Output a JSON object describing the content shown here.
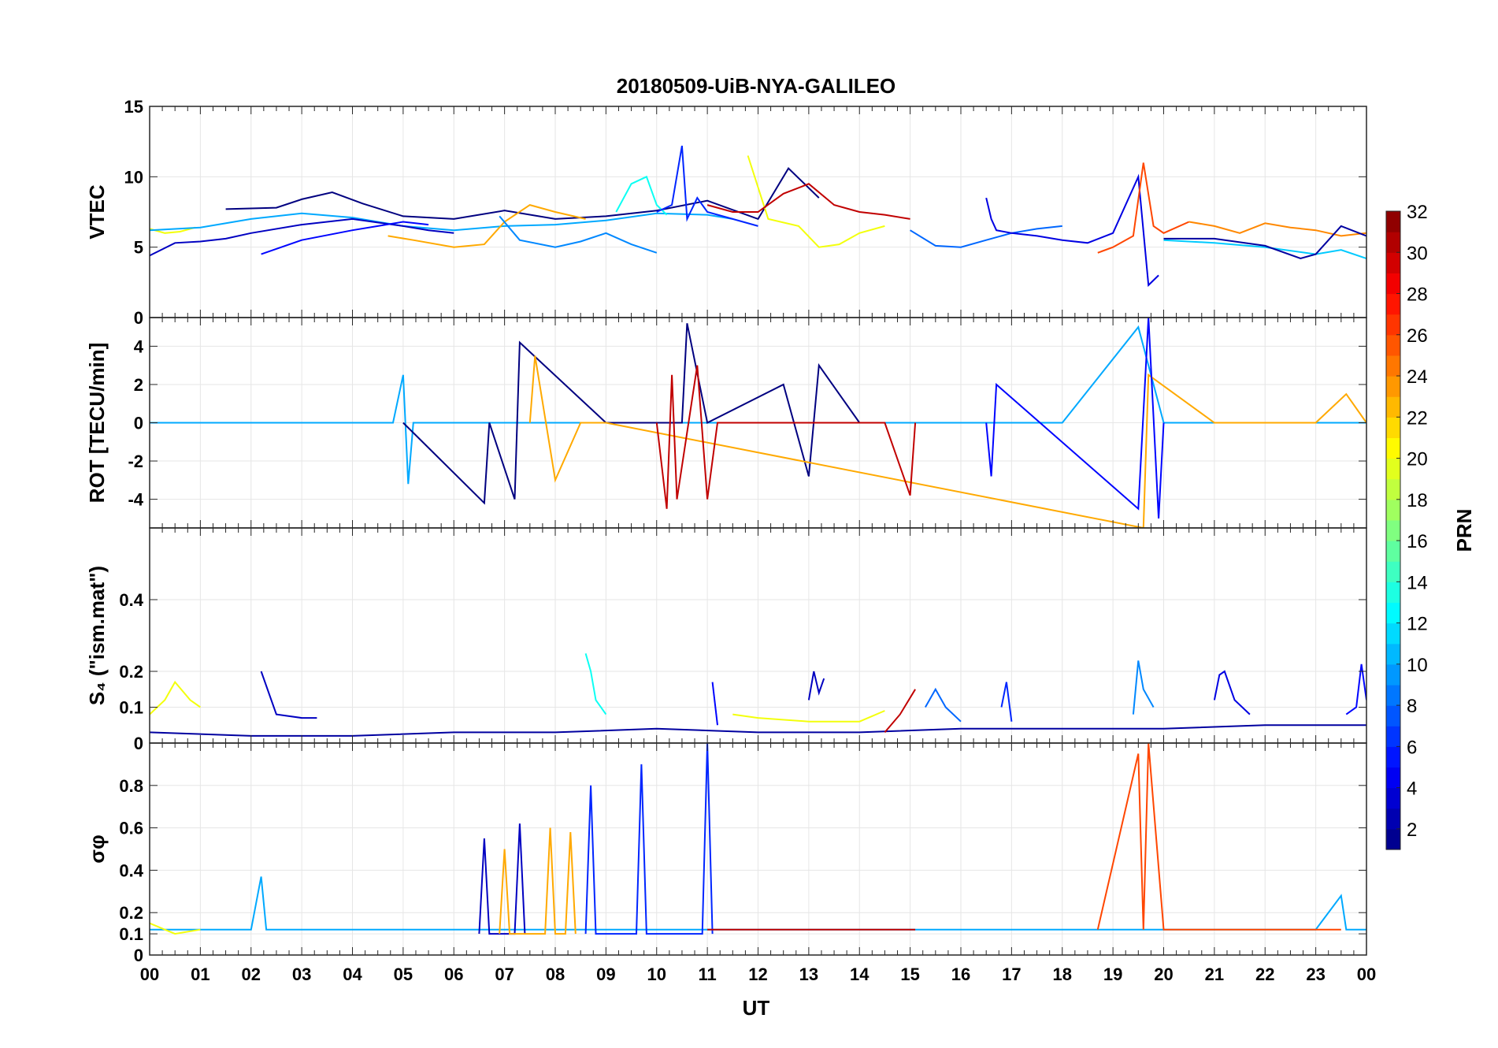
{
  "chart_data": {
    "type": "line",
    "title": "20180509-UiB-NYA-GALILEO",
    "xlabel": "UT",
    "x_ticks": [
      "00",
      "01",
      "02",
      "03",
      "04",
      "05",
      "06",
      "07",
      "08",
      "09",
      "10",
      "11",
      "12",
      "13",
      "14",
      "15",
      "16",
      "17",
      "18",
      "19",
      "20",
      "21",
      "22",
      "23",
      "00"
    ],
    "xlim": [
      0,
      24
    ],
    "colorbar": {
      "label": "PRN",
      "ticks": [
        2,
        4,
        6,
        8,
        10,
        12,
        14,
        16,
        18,
        20,
        22,
        24,
        26,
        28,
        30,
        32
      ],
      "range": [
        1,
        32
      ]
    },
    "panels": [
      {
        "id": "vtec",
        "ylabel": "VTEC",
        "ylim": [
          0,
          15
        ],
        "y_ticks": [
          0,
          5,
          10,
          15
        ],
        "series": [
          {
            "prn": 20,
            "x": [
              0.0,
              0.3,
              0.6,
              0.9
            ],
            "y": [
              6.3,
              6.0,
              6.1,
              6.4
            ]
          },
          {
            "prn": 10,
            "x": [
              0.0,
              1.0,
              2.0,
              3.0,
              4.0,
              5.0,
              6.0,
              7.0,
              8.0,
              9.0,
              10.0,
              11.0,
              11.5
            ],
            "y": [
              6.2,
              6.4,
              7.0,
              7.4,
              7.1,
              6.5,
              6.2,
              6.5,
              6.6,
              6.9,
              7.4,
              7.3,
              7.0
            ]
          },
          {
            "prn": 3,
            "x": [
              0.0,
              0.5,
              1.0,
              1.5,
              2.0,
              3.0,
              4.0,
              5.0,
              5.5,
              6.0
            ],
            "y": [
              4.4,
              5.3,
              5.4,
              5.6,
              6.0,
              6.6,
              7.0,
              6.5,
              6.2,
              6.0
            ]
          },
          {
            "prn": 1,
            "x": [
              1.5,
              2.5,
              3.0,
              3.6,
              4.2,
              5.0,
              6.0,
              7.0,
              8.0,
              9.0,
              10.0,
              11.0,
              12.0,
              12.6,
              13.2
            ],
            "y": [
              7.7,
              7.8,
              8.4,
              8.9,
              8.1,
              7.2,
              7.0,
              7.6,
              7.0,
              7.2,
              7.6,
              8.3,
              7.0,
              10.6,
              8.5
            ]
          },
          {
            "prn": 5,
            "x": [
              2.2,
              3.0,
              4.0,
              4.5,
              5.0,
              5.5
            ],
            "y": [
              4.5,
              5.5,
              6.2,
              6.5,
              6.8,
              6.6
            ]
          },
          {
            "prn": 23,
            "x": [
              4.7,
              5.2,
              6.0,
              6.6,
              7.0,
              7.5,
              8.0,
              8.6
            ],
            "y": [
              5.8,
              5.5,
              5.0,
              5.2,
              6.8,
              8.0,
              7.5,
              7.0
            ]
          },
          {
            "prn": 9,
            "x": [
              6.9,
              7.3,
              8.0,
              8.5,
              9.0,
              9.5,
              10.0
            ],
            "y": [
              7.2,
              5.5,
              5.0,
              5.4,
              6.0,
              5.2,
              4.6
            ]
          },
          {
            "prn": 13,
            "x": [
              9.2,
              9.5,
              9.8,
              10.0,
              10.2
            ],
            "y": [
              7.5,
              9.5,
              10.0,
              8.0,
              7.3
            ]
          },
          {
            "prn": 6,
            "x": [
              10.0,
              10.3,
              10.5,
              10.6,
              10.8,
              11.0,
              11.5,
              12.0
            ],
            "y": [
              7.5,
              8.0,
              12.2,
              7.0,
              8.5,
              7.5,
              7.0,
              6.5
            ]
          },
          {
            "prn": 20,
            "x": [
              11.8,
              12.2,
              12.8,
              13.2,
              13.6,
              14.0,
              14.5
            ],
            "y": [
              11.5,
              7.0,
              6.5,
              5.0,
              5.2,
              6.0,
              6.5
            ]
          },
          {
            "prn": 30,
            "x": [
              11.0,
              11.5,
              12.0,
              12.5,
              13.0,
              13.5,
              14.0,
              14.5,
              15.0
            ],
            "y": [
              8.0,
              7.5,
              7.5,
              8.8,
              9.5,
              8.0,
              7.5,
              7.3,
              7.0
            ]
          },
          {
            "prn": 8,
            "x": [
              15.0,
              15.5,
              16.0,
              16.5,
              17.0,
              17.5,
              18.0
            ],
            "y": [
              6.2,
              5.1,
              5.0,
              5.5,
              6.0,
              6.3,
              6.5
            ]
          },
          {
            "prn": 4,
            "x": [
              16.5,
              16.6,
              16.7,
              17.0,
              17.5,
              18.0,
              18.5,
              19.0,
              19.5,
              19.7,
              19.9
            ],
            "y": [
              8.5,
              7.0,
              6.2,
              6.0,
              5.8,
              5.5,
              5.3,
              6.0,
              10.0,
              2.3,
              3.0
            ]
          },
          {
            "prn": 26,
            "x": [
              18.7,
              19.0,
              19.4,
              19.6,
              19.8,
              20.0,
              20.5
            ],
            "y": [
              4.6,
              5.0,
              5.8,
              11.0,
              6.5,
              6.0,
              6.8
            ]
          },
          {
            "prn": 24,
            "x": [
              20.5,
              21.0,
              21.5,
              22.0,
              22.5,
              23.0,
              23.5,
              24.0
            ],
            "y": [
              6.8,
              6.5,
              6.0,
              6.7,
              6.4,
              6.2,
              5.8,
              6.0
            ]
          },
          {
            "prn": 11,
            "x": [
              20.0,
              21.0,
              22.0,
              23.0,
              23.5,
              24.0
            ],
            "y": [
              5.5,
              5.3,
              5.0,
              4.5,
              4.8,
              4.2
            ]
          },
          {
            "prn": 2,
            "x": [
              20.0,
              21.0,
              22.0,
              22.7,
              23.0,
              23.5,
              24.0
            ],
            "y": [
              5.6,
              5.6,
              5.1,
              4.2,
              4.5,
              6.5,
              5.8
            ]
          }
        ]
      },
      {
        "id": "rot",
        "ylabel": "ROT [TECU/min]",
        "ylim": [
          -5.5,
          5.5
        ],
        "y_ticks": [
          -4,
          -2,
          0,
          2,
          4
        ],
        "series": [
          {
            "prn": 10,
            "x": [
              0.0,
              4.8,
              5.0,
              5.1,
              5.2,
              6.0,
              8.0,
              9.0,
              10.0,
              16.0,
              18.0,
              19.5,
              20.0,
              24.0
            ],
            "y": [
              0.0,
              0.0,
              2.5,
              -3.2,
              0.0,
              0.0,
              0.0,
              0.0,
              0.0,
              0.0,
              0.0,
              5.0,
              0.0,
              0.0
            ]
          },
          {
            "prn": 1,
            "x": [
              5.0,
              6.6,
              6.7,
              7.2,
              7.3,
              9.0,
              10.5,
              10.6,
              11.0,
              12.5,
              13.0,
              13.2,
              14.0
            ],
            "y": [
              0.0,
              -4.2,
              0.0,
              -4.0,
              4.2,
              0.0,
              0.0,
              5.2,
              0.0,
              2.0,
              -2.8,
              3.0,
              0.0
            ]
          },
          {
            "prn": 23,
            "x": [
              7.5,
              7.6,
              8.0,
              8.5,
              9.0,
              19.6,
              19.7,
              21.0,
              23.0,
              23.6,
              24.0
            ],
            "y": [
              0.0,
              3.5,
              -3.0,
              0.0,
              0.0,
              -5.5,
              2.5,
              0.0,
              0.0,
              1.5,
              0.0
            ]
          },
          {
            "prn": 30,
            "x": [
              10.0,
              10.2,
              10.3,
              10.4,
              10.8,
              11.0,
              11.2,
              12.0,
              13.0,
              14.5,
              15.0,
              15.1
            ],
            "y": [
              0.0,
              -4.5,
              2.5,
              -4.0,
              3.0,
              -4.0,
              0.0,
              0.0,
              0.0,
              0.0,
              -3.8,
              0.0
            ]
          },
          {
            "prn": 5,
            "x": [
              16.5,
              16.6,
              16.7,
              19.5,
              19.7,
              19.9,
              20.0
            ],
            "y": [
              0.0,
              -2.8,
              2.0,
              -4.5,
              5.5,
              -5.0,
              0.0
            ]
          }
        ]
      },
      {
        "id": "s4",
        "ylabel": "S₄ (\"ism.mat\")",
        "ylim": [
          0,
          0.6
        ],
        "y_ticks": [
          0,
          0.1,
          0.2,
          0.4
        ],
        "series": [
          {
            "prn": 20,
            "x": [
              0.0,
              0.3,
              0.5,
              0.8,
              1.0
            ],
            "y": [
              0.08,
              0.12,
              0.17,
              0.12,
              0.1
            ]
          },
          {
            "prn": 2,
            "x": [
              0.0,
              2.0,
              4.0,
              6.0,
              8.0,
              10.0,
              12.0,
              14.0,
              16.0,
              18.0,
              20.0,
              22.0,
              24.0
            ],
            "y": [
              0.03,
              0.02,
              0.02,
              0.03,
              0.03,
              0.04,
              0.03,
              0.03,
              0.04,
              0.04,
              0.04,
              0.05,
              0.05
            ]
          },
          {
            "prn": 3,
            "x": [
              2.2,
              2.5,
              3.0,
              3.3
            ],
            "y": [
              0.2,
              0.08,
              0.07,
              0.07
            ]
          },
          {
            "prn": 13,
            "x": [
              8.6,
              8.7,
              8.8,
              9.0
            ],
            "y": [
              0.25,
              0.2,
              0.12,
              0.08
            ]
          },
          {
            "prn": 5,
            "x": [
              11.1,
              11.2
            ],
            "y": [
              0.17,
              0.05
            ]
          },
          {
            "prn": 20,
            "x": [
              11.5,
              12.0,
              13.0,
              14.0,
              14.5
            ],
            "y": [
              0.08,
              0.07,
              0.06,
              0.06,
              0.09
            ]
          },
          {
            "prn": 3,
            "x": [
              13.0,
              13.1,
              13.2,
              13.3
            ],
            "y": [
              0.12,
              0.2,
              0.14,
              0.18
            ]
          },
          {
            "prn": 30,
            "x": [
              14.5,
              14.8,
              15.1
            ],
            "y": [
              0.03,
              0.08,
              0.15
            ]
          },
          {
            "prn": 8,
            "x": [
              15.3,
              15.5,
              15.7,
              16.0
            ],
            "y": [
              0.1,
              0.15,
              0.1,
              0.06
            ]
          },
          {
            "prn": 6,
            "x": [
              16.8,
              16.9,
              17.0
            ],
            "y": [
              0.1,
              0.17,
              0.06
            ]
          },
          {
            "prn": 9,
            "x": [
              19.4,
              19.5,
              19.6,
              19.8
            ],
            "y": [
              0.08,
              0.23,
              0.15,
              0.1
            ]
          },
          {
            "prn": 4,
            "x": [
              21.0,
              21.1,
              21.2,
              21.4,
              21.7
            ],
            "y": [
              0.12,
              0.19,
              0.2,
              0.12,
              0.08
            ]
          },
          {
            "prn": 5,
            "x": [
              23.6,
              23.8,
              23.9,
              24.0
            ],
            "y": [
              0.08,
              0.1,
              0.22,
              0.12
            ]
          }
        ]
      },
      {
        "id": "sigma_phi",
        "ylabel": "σφ",
        "ylim": [
          0,
          1
        ],
        "y_ticks": [
          0,
          0.1,
          0.2,
          0.4,
          0.6,
          0.8
        ],
        "series": [
          {
            "prn": 10,
            "x": [
              0.0,
              1.0,
              2.0,
              2.2,
              2.3,
              3.0,
              4.0,
              5.0,
              6.0,
              8.0,
              10.0,
              16.0,
              18.0,
              21.0,
              23.0,
              23.5,
              23.6,
              24.0
            ],
            "y": [
              0.12,
              0.12,
              0.12,
              0.37,
              0.12,
              0.12,
              0.12,
              0.12,
              0.12,
              0.12,
              0.12,
              0.12,
              0.12,
              0.12,
              0.12,
              0.28,
              0.12,
              0.12
            ]
          },
          {
            "prn": 20,
            "x": [
              0.0,
              0.5,
              1.0
            ],
            "y": [
              0.15,
              0.1,
              0.12
            ]
          },
          {
            "prn": 3,
            "x": [
              6.5,
              6.6,
              6.7,
              7.2,
              7.3,
              7.4
            ],
            "y": [
              0.1,
              0.55,
              0.1,
              0.1,
              0.62,
              0.1
            ]
          },
          {
            "prn": 23,
            "x": [
              6.9,
              7.0,
              7.1,
              7.8,
              7.9,
              8.0,
              8.2,
              8.3,
              8.4
            ],
            "y": [
              0.1,
              0.5,
              0.1,
              0.1,
              0.6,
              0.1,
              0.1,
              0.58,
              0.1
            ]
          },
          {
            "prn": 6,
            "x": [
              8.6,
              8.7,
              8.8,
              9.6,
              9.7,
              9.8,
              10.9,
              11.0,
              11.1
            ],
            "y": [
              0.1,
              0.8,
              0.1,
              0.1,
              0.9,
              0.1,
              0.1,
              1.0,
              0.1
            ]
          },
          {
            "prn": 30,
            "x": [
              11.0,
              13.0,
              15.0,
              15.1
            ],
            "y": [
              0.12,
              0.12,
              0.12,
              0.12
            ]
          },
          {
            "prn": 26,
            "x": [
              18.7,
              19.5,
              19.6,
              19.7,
              20.0,
              22.0,
              23.5
            ],
            "y": [
              0.12,
              0.95,
              0.12,
              1.0,
              0.12,
              0.12,
              0.12
            ]
          }
        ]
      }
    ]
  }
}
